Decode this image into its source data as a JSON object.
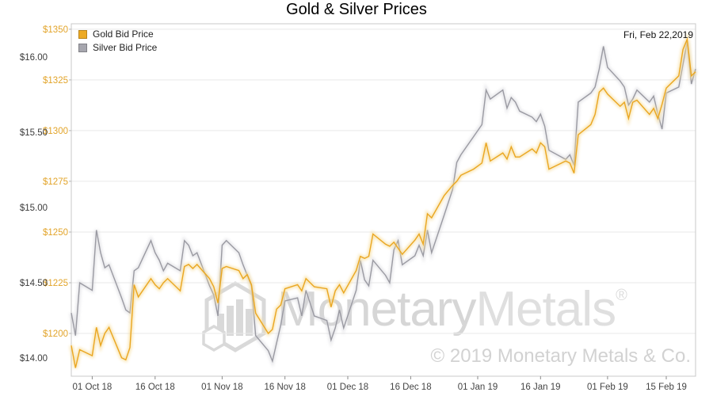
{
  "chart_data": {
    "type": "line",
    "title": "Gold & Silver Prices",
    "as_of_label": "Fri, Feb 22,2019",
    "legend": [
      {
        "label": "Gold Bid Price",
        "color": "#edaa24"
      },
      {
        "label": "Silver Bid Price",
        "color": "#a6a6ae"
      }
    ],
    "x_axis": {
      "range": [
        "2018-09-26",
        "2019-02-22"
      ],
      "ticks": [
        {
          "date": "2018-10-01",
          "label": "01 Oct 18"
        },
        {
          "date": "2018-10-16",
          "label": "16 Oct 18"
        },
        {
          "date": "2018-11-01",
          "label": "01 Nov 18"
        },
        {
          "date": "2018-11-16",
          "label": "16 Nov 18"
        },
        {
          "date": "2018-12-01",
          "label": "01 Dec 18"
        },
        {
          "date": "2018-12-16",
          "label": "16 Dec 18"
        },
        {
          "date": "2019-01-01",
          "label": "01 Jan 19"
        },
        {
          "date": "2019-01-16",
          "label": "16 Jan 19"
        },
        {
          "date": "2019-02-01",
          "label": "01 Feb 19"
        },
        {
          "date": "2019-02-15",
          "label": "15 Feb 19"
        }
      ]
    },
    "y_axis_gold": {
      "side": "left-inner",
      "label_color": "#e2a42a",
      "top": 1352.7,
      "bottom": 1178.9,
      "ticks": [
        {
          "value": 1350,
          "label": "$1350"
        },
        {
          "value": 1325,
          "label": "$1325"
        },
        {
          "value": 1300,
          "label": "$1300"
        },
        {
          "value": 1275,
          "label": "$1275"
        },
        {
          "value": 1250,
          "label": "$1250"
        },
        {
          "value": 1225,
          "label": "$1225"
        },
        {
          "value": 1200,
          "label": "$1200"
        }
      ]
    },
    "y_axis_silver": {
      "side": "left-outer",
      "label_color": "#3c3c3c",
      "top": 16.22,
      "bottom": 13.88,
      "ticks": [
        {
          "value": 16.0,
          "label": "$16.00"
        },
        {
          "value": 15.5,
          "label": "$15.50"
        },
        {
          "value": 15.0,
          "label": "$15.00"
        },
        {
          "value": 14.5,
          "label": "$14.50"
        },
        {
          "value": 14.0,
          "label": "$14.00"
        }
      ]
    },
    "series": [
      {
        "name": "Gold Bid Price",
        "axis": "gold",
        "color": "#eaa621",
        "glow": "#f7dd9a"
      },
      {
        "name": "Silver Bid Price",
        "axis": "silver",
        "color": "#9a9aa2",
        "glow": "#d7d7dc"
      }
    ],
    "dates": [
      "2018-09-26",
      "2018-09-27",
      "2018-09-28",
      "2018-10-01",
      "2018-10-02",
      "2018-10-03",
      "2018-10-04",
      "2018-10-05",
      "2018-10-08",
      "2018-10-09",
      "2018-10-10",
      "2018-10-11",
      "2018-10-12",
      "2018-10-15",
      "2018-10-16",
      "2018-10-17",
      "2018-10-18",
      "2018-10-19",
      "2018-10-22",
      "2018-10-23",
      "2018-10-24",
      "2018-10-25",
      "2018-10-26",
      "2018-10-29",
      "2018-10-30",
      "2018-10-31",
      "2018-11-01",
      "2018-11-02",
      "2018-11-05",
      "2018-11-06",
      "2018-11-07",
      "2018-11-08",
      "2018-11-09",
      "2018-11-12",
      "2018-11-13",
      "2018-11-14",
      "2018-11-15",
      "2018-11-16",
      "2018-11-19",
      "2018-11-20",
      "2018-11-21",
      "2018-11-23",
      "2018-11-26",
      "2018-11-27",
      "2018-11-28",
      "2018-11-29",
      "2018-11-30",
      "2018-12-03",
      "2018-12-04",
      "2018-12-05",
      "2018-12-06",
      "2018-12-07",
      "2018-12-10",
      "2018-12-11",
      "2018-12-12",
      "2018-12-13",
      "2018-12-14",
      "2018-12-17",
      "2018-12-18",
      "2018-12-19",
      "2018-12-20",
      "2018-12-21",
      "2018-12-24",
      "2018-12-26",
      "2018-12-27",
      "2018-12-28",
      "2018-12-31",
      "2019-01-02",
      "2019-01-03",
      "2019-01-04",
      "2019-01-07",
      "2019-01-08",
      "2019-01-09",
      "2019-01-10",
      "2019-01-11",
      "2019-01-14",
      "2019-01-15",
      "2019-01-16",
      "2019-01-17",
      "2019-01-18",
      "2019-01-22",
      "2019-01-23",
      "2019-01-24",
      "2019-01-25",
      "2019-01-28",
      "2019-01-29",
      "2019-01-30",
      "2019-01-31",
      "2019-02-01",
      "2019-02-04",
      "2019-02-05",
      "2019-02-06",
      "2019-02-07",
      "2019-02-08",
      "2019-02-11",
      "2019-02-12",
      "2019-02-13",
      "2019-02-14",
      "2019-02-15",
      "2019-02-18",
      "2019-02-19",
      "2019-02-20",
      "2019-02-21",
      "2019-02-22"
    ],
    "gold_values": [
      1194,
      1183,
      1192,
      1189,
      1203,
      1194,
      1200,
      1203,
      1188,
      1187,
      1193,
      1224,
      1218,
      1227,
      1224,
      1222,
      1225,
      1227,
      1221,
      1233,
      1234,
      1232,
      1234,
      1227,
      1223,
      1215,
      1232,
      1233,
      1231,
      1227,
      1229,
      1224,
      1210,
      1200,
      1202,
      1212,
      1214,
      1222,
      1224,
      1221,
      1227,
      1223,
      1222,
      1213,
      1221,
      1224,
      1220,
      1231,
      1238,
      1237,
      1238,
      1249,
      1244,
      1243,
      1245,
      1242,
      1239,
      1246,
      1249,
      1244,
      1259,
      1257,
      1268,
      1273,
      1275,
      1278,
      1281,
      1284,
      1294,
      1285,
      1289,
      1286,
      1292,
      1287,
      1287,
      1291,
      1289,
      1294,
      1292,
      1281,
      1285,
      1284,
      1279,
      1298,
      1303,
      1308,
      1319,
      1321,
      1318,
      1312,
      1314,
      1306,
      1314,
      1315,
      1308,
      1311,
      1306,
      1313,
      1321,
      1327,
      1340,
      1345,
      1327,
      1329
    ],
    "silver_values": [
      14.3,
      14.15,
      14.5,
      14.45,
      14.85,
      14.7,
      14.6,
      14.62,
      14.4,
      14.32,
      14.3,
      14.58,
      14.6,
      14.78,
      14.7,
      14.65,
      14.58,
      14.63,
      14.58,
      14.78,
      14.75,
      14.68,
      14.7,
      14.48,
      14.42,
      14.28,
      14.75,
      14.78,
      14.7,
      14.62,
      14.55,
      14.48,
      14.15,
      14.05,
      13.98,
      14.1,
      14.22,
      14.38,
      14.4,
      14.28,
      14.45,
      14.28,
      14.25,
      14.12,
      14.2,
      14.32,
      14.2,
      14.45,
      14.65,
      14.52,
      14.48,
      14.65,
      14.55,
      14.5,
      14.72,
      14.78,
      14.62,
      14.68,
      14.75,
      14.68,
      14.85,
      14.7,
      14.95,
      15.12,
      15.3,
      15.35,
      15.47,
      15.55,
      15.78,
      15.72,
      15.78,
      15.66,
      15.73,
      15.7,
      15.64,
      15.6,
      15.57,
      15.62,
      15.54,
      15.38,
      15.32,
      15.35,
      15.28,
      15.7,
      15.76,
      15.8,
      15.92,
      16.07,
      15.93,
      15.84,
      15.8,
      15.68,
      15.72,
      15.78,
      15.7,
      15.74,
      15.62,
      15.52,
      15.76,
      15.8,
      15.95,
      16.1,
      15.82,
      15.92
    ]
  },
  "watermark": {
    "brand_part1": "Monetary",
    "brand_part2": "Metals",
    "registered": "®",
    "copyright": "© 2019 Monetary Metals & Co."
  }
}
